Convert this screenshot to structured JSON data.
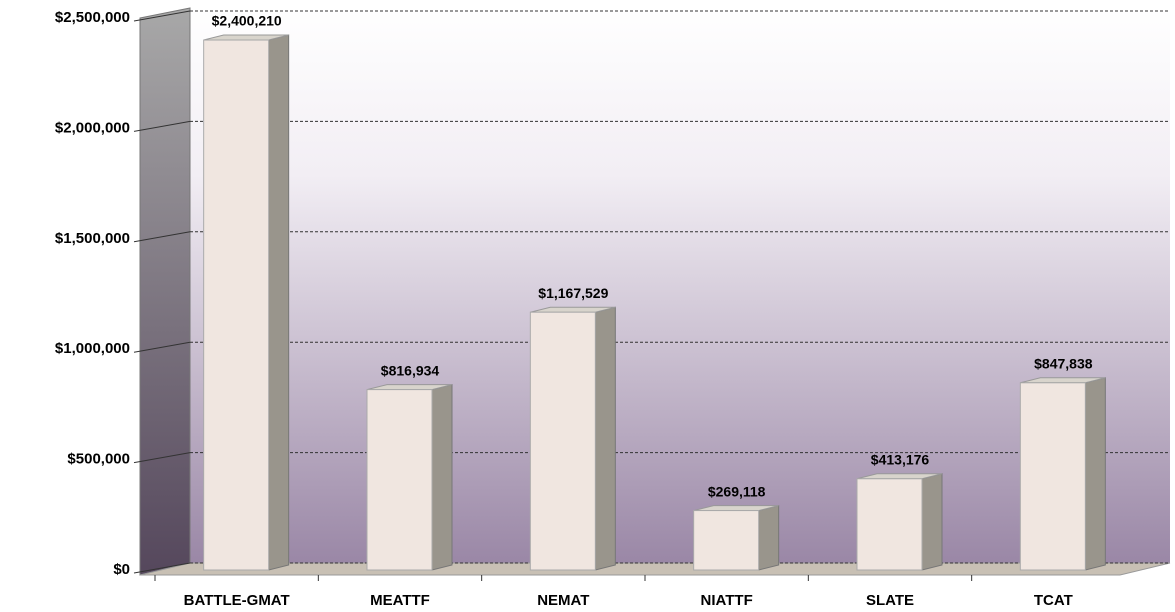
{
  "chart_data": {
    "type": "bar",
    "categories": [
      "BATTLE-GMAT",
      "MEATTF",
      "NEMAT",
      "NIATTF",
      "SLATE",
      "TCAT"
    ],
    "values": [
      2400210,
      816934,
      1167529,
      269118,
      413176,
      847838
    ],
    "value_labels": [
      "$2,400,210",
      "$816,934",
      "$1,167,529",
      "$269,118",
      "$413,176",
      "$847,838"
    ],
    "color": "#f0e6e0",
    "ylim": [
      0,
      2500000
    ],
    "yticks": [
      {
        "value": 0,
        "label": "$0"
      },
      {
        "value": 500000,
        "label": "$500,000"
      },
      {
        "value": 1000000,
        "label": "$1,000,000"
      },
      {
        "value": 1500000,
        "label": "$1,500,000"
      },
      {
        "value": 2000000,
        "label": "$2,000,000"
      },
      {
        "value": 2500000,
        "label": "$2,500,000"
      }
    ],
    "grid": true
  }
}
